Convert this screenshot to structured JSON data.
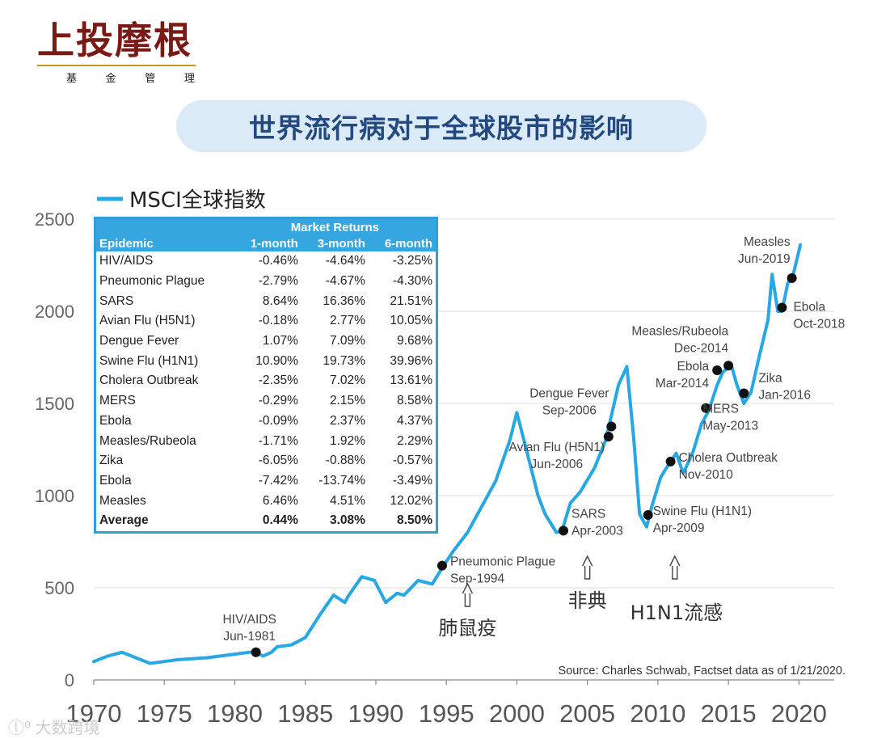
{
  "brand": {
    "name": "上投摩根",
    "subtitle": "基 金 管 理",
    "colors": {
      "logo": "#7a1a14",
      "rule": "#c8961e"
    }
  },
  "page_title": "世界流行病对于全球股市的影响",
  "watermark": "大数跨境",
  "table": {
    "group_header": "Market Returns",
    "columns": [
      "Epidemic",
      "1-month",
      "3-month",
      "6-month"
    ],
    "rows": [
      [
        "HIV/AIDS",
        "-0.46%",
        "-4.64%",
        "-3.25%"
      ],
      [
        "Pneumonic Plague",
        "-2.79%",
        "-4.67%",
        "-4.30%"
      ],
      [
        "SARS",
        "8.64%",
        "16.36%",
        "21.51%"
      ],
      [
        "Avian Flu (H5N1)",
        "-0.18%",
        "2.77%",
        "10.05%"
      ],
      [
        "Dengue Fever",
        "1.07%",
        "7.09%",
        "9.68%"
      ],
      [
        "Swine Flu (H1N1)",
        "10.90%",
        "19.73%",
        "39.96%"
      ],
      [
        "Cholera Outbreak",
        "-2.35%",
        "7.02%",
        "13.61%"
      ],
      [
        "MERS",
        "-0.29%",
        "2.15%",
        "8.58%"
      ],
      [
        "Ebola",
        "-0.09%",
        "2.37%",
        "4.37%"
      ],
      [
        "Measles/Rubeola",
        "-1.71%",
        "1.92%",
        "2.29%"
      ],
      [
        "Zika",
        "-6.05%",
        "-0.88%",
        "-0.57%"
      ],
      [
        "Ebola",
        "-7.42%",
        "-13.74%",
        "-3.49%"
      ],
      [
        "Measles",
        "6.46%",
        "4.51%",
        "12.02%"
      ]
    ],
    "average": [
      "Average",
      "0.44%",
      "3.08%",
      "8.50%"
    ]
  },
  "chart_data": {
    "type": "line",
    "title": "世界流行病对于全球股市的影响",
    "legend": "MSCI全球指数",
    "xlabel": "",
    "ylabel": "",
    "xlim": [
      1970,
      2022.5
    ],
    "ylim": [
      0,
      2500
    ],
    "x_ticks": [
      1970,
      1975,
      1980,
      1985,
      1990,
      1995,
      2000,
      2005,
      2010,
      2015,
      2020
    ],
    "y_ticks": [
      0,
      500,
      1000,
      1500,
      2000,
      2500
    ],
    "grid": "horizontal",
    "line_color": "#27a7e3",
    "series": [
      {
        "name": "MSCI全球指数",
        "x": [
          1970,
          1971,
          1972,
          1973,
          1974,
          1975,
          1976,
          1977,
          1978,
          1979,
          1980,
          1981,
          1981.5,
          1982,
          1982.6,
          1983,
          1984,
          1985,
          1986,
          1987,
          1987.8,
          1988,
          1989,
          1989.9,
          1990.7,
          1991.5,
          1992,
          1993,
          1994,
          1994.8,
          1995.5,
          1996.5,
          1997.5,
          1998.5,
          1999.5,
          2000,
          2000.5,
          2001,
          2001.5,
          2002,
          2002.8,
          2003.2,
          2003.8,
          2004.5,
          2005.5,
          2006.3,
          2007.2,
          2007.8,
          2008.3,
          2008.7,
          2009.2,
          2009.6,
          2010.2,
          2010.6,
          2011.3,
          2011.8,
          2012.5,
          2013.1,
          2013.6,
          2014.2,
          2014.6,
          2015.2,
          2015.6,
          2016.1,
          2016.6,
          2017.2,
          2017.8,
          2018.1,
          2018.5,
          2018.8,
          2019.2,
          2019.6,
          2020.1
        ],
        "y": [
          100,
          130,
          150,
          120,
          90,
          100,
          110,
          115,
          120,
          130,
          140,
          150,
          150,
          130,
          150,
          180,
          190,
          230,
          350,
          460,
          420,
          450,
          560,
          540,
          420,
          470,
          460,
          540,
          520,
          620,
          700,
          800,
          940,
          1080,
          1300,
          1450,
          1300,
          1150,
          1000,
          900,
          800,
          810,
          960,
          1020,
          1150,
          1300,
          1600,
          1700,
          1300,
          900,
          830,
          950,
          1100,
          1150,
          1230,
          1120,
          1240,
          1390,
          1460,
          1600,
          1670,
          1710,
          1600,
          1500,
          1560,
          1760,
          1950,
          2200,
          2000,
          2000,
          2150,
          2200,
          2360
        ]
      }
    ],
    "events": [
      {
        "name": "HIV/AIDS",
        "date": "Jun-1981",
        "x": 1981.5,
        "y": 150
      },
      {
        "name": "Pneumonic Plague",
        "date": "Sep-1994",
        "x": 1994.7,
        "y": 620
      },
      {
        "name": "SARS",
        "date": "Apr-2003",
        "x": 2003.3,
        "y": 810
      },
      {
        "name": "Avian Flu (H5N1)",
        "date": "Jun-2006",
        "x": 2006.5,
        "y": 1320
      },
      {
        "name": "Dengue Fever",
        "date": "Sep-2006",
        "x": 2006.7,
        "y": 1375
      },
      {
        "name": "Swine Flu (H1N1)",
        "date": "Apr-2009",
        "x": 2009.3,
        "y": 895
      },
      {
        "name": "Cholera Outbreak",
        "date": "Nov-2010",
        "x": 2010.9,
        "y": 1185
      },
      {
        "name": "MERS",
        "date": "May-2013",
        "x": 2013.4,
        "y": 1475
      },
      {
        "name": "Ebola",
        "date": "Mar-2014",
        "x": 2014.2,
        "y": 1680
      },
      {
        "name": "Measles/Rubeola",
        "date": "Dec-2014",
        "x": 2015,
        "y": 1705
      },
      {
        "name": "Zika",
        "date": "Jan-2016",
        "x": 2016.1,
        "y": 1555
      },
      {
        "name": "Ebola",
        "date": "Oct-2018",
        "x": 2018.8,
        "y": 2020
      },
      {
        "name": "Measles",
        "date": "Jun-2019",
        "x": 2019.5,
        "y": 2180
      }
    ],
    "callouts": [
      {
        "label": "肺鼠疫",
        "x": 1996.5
      },
      {
        "label": "非典",
        "x": 2005
      },
      {
        "label": "H1N1流感",
        "x": 2011.2
      }
    ],
    "source": "Source: Charles Schwab, Factset data as of 1/21/2020."
  }
}
